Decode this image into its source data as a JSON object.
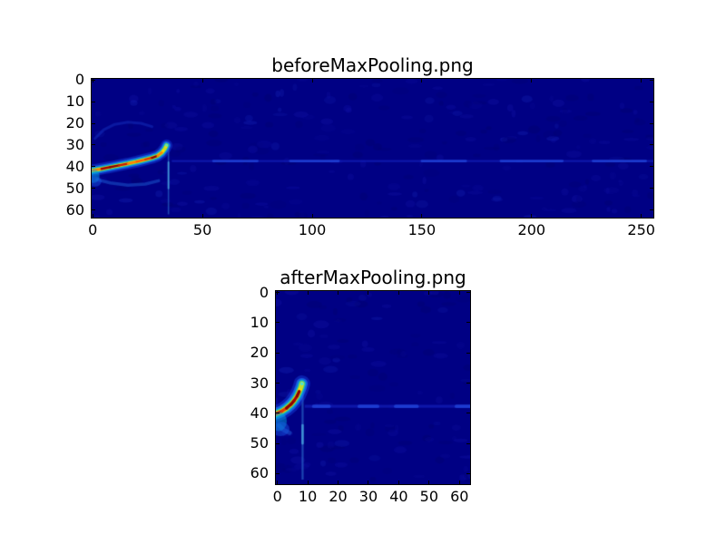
{
  "figure": {
    "background": "#ffffff"
  },
  "chart_data": [
    {
      "id": "before",
      "type": "heatmap",
      "title": "beforeMaxPooling.png",
      "colormap": "jet",
      "x_ticks": [
        0,
        50,
        100,
        150,
        200,
        250
      ],
      "y_ticks": [
        0,
        10,
        20,
        30,
        40,
        50,
        60
      ],
      "x_range": [
        -0.5,
        255.5
      ],
      "y_range": [
        -0.5,
        63.5
      ],
      "y_axis_inverted": true,
      "grid": false,
      "background_color": "#000084",
      "description": "spectrogram-like image, dark navy background with a bright rising chirp at lower-left",
      "features": {
        "chirp_ridge": [
          [
            -0.5,
            41.8
          ],
          [
            4,
            41.0
          ],
          [
            8,
            40.2
          ],
          [
            12,
            39.4
          ],
          [
            16,
            38.6
          ],
          [
            20,
            37.7
          ],
          [
            24,
            36.7
          ],
          [
            27,
            35.9
          ],
          [
            29.5,
            35.0
          ],
          [
            31.5,
            33.5
          ],
          [
            32.8,
            31.8
          ],
          [
            33.6,
            30.2
          ]
        ],
        "chirp_colors": {
          "core": [
            "#8b0000",
            "#c81800",
            "#ff5a00",
            "#a80000",
            "#e03a00",
            "#ff8000"
          ],
          "yellow": "#ffd800",
          "green": "rgba(120,215,70,0.9)",
          "cyan": "rgba(0,185,215,0.85)",
          "blue": "rgba(25,110,235,0.8)",
          "halo": "rgba(20,60,215,0.5)"
        },
        "vertical_streak": {
          "x": 34.5,
          "y_from": 29.5,
          "y_to": 62,
          "bright": [
            38,
            50
          ]
        },
        "horizontal_band": {
          "y": 37.4,
          "x_from": 36,
          "x_to": 255.5
        },
        "band_bright_segments": [
          [
            55,
            75
          ],
          [
            90,
            112
          ],
          [
            150,
            170
          ],
          [
            186,
            214
          ],
          [
            228,
            252
          ]
        ],
        "upper_arc": [
          [
            1,
            27
          ],
          [
            5,
            23
          ],
          [
            10,
            20.5
          ],
          [
            16,
            19.5
          ],
          [
            22,
            20
          ],
          [
            27,
            21.5
          ]
        ],
        "lower_arc": [
          [
            2,
            46
          ],
          [
            8,
            47.5
          ],
          [
            16,
            48.5
          ],
          [
            24,
            48
          ],
          [
            30,
            46.5
          ]
        ]
      }
    },
    {
      "id": "after",
      "type": "heatmap",
      "title": "afterMaxPooling.png",
      "colormap": "jet",
      "x_ticks": [
        0,
        10,
        20,
        30,
        40,
        50,
        60
      ],
      "y_ticks": [
        0,
        10,
        20,
        30,
        40,
        50,
        60
      ],
      "x_range": [
        -0.5,
        63.5
      ],
      "y_range": [
        -0.5,
        63.5
      ],
      "y_axis_inverted": true,
      "grid": false,
      "background_color": "#000084",
      "description": "max-pooled version of the spectrogram, same chirp compressed to the left edge",
      "features": {
        "chirp_ridge": [
          [
            -0.5,
            40.2
          ],
          [
            1.5,
            39.3
          ],
          [
            3,
            38.3
          ],
          [
            4.5,
            37.0
          ],
          [
            5.5,
            35.8
          ],
          [
            6.5,
            34.3
          ],
          [
            7.2,
            32.8
          ],
          [
            7.8,
            31.3
          ],
          [
            8.1,
            30.2
          ]
        ],
        "chirp_colors": {
          "core": [
            "#8b0000",
            "#c81800",
            "#ff5a00",
            "#a80000",
            "#e03a00",
            "#ff8000"
          ],
          "yellow": "#ffd800",
          "green": "rgba(120,215,70,0.9)",
          "cyan": "rgba(0,185,215,0.85)",
          "blue": "rgba(25,110,235,0.8)",
          "halo": "rgba(20,60,215,0.5)"
        },
        "vertical_streak": {
          "x": 8.3,
          "y_from": 30,
          "y_to": 62,
          "bright": [
            44,
            50
          ]
        },
        "horizontal_band": {
          "y": 37.7,
          "x_from": 9,
          "x_to": 63.5
        },
        "band_bright_segments": [
          [
            12,
            17
          ],
          [
            27,
            33
          ],
          [
            39,
            46
          ],
          [
            59,
            63.5
          ]
        ],
        "lower_arc": [
          [
            0.5,
            44
          ],
          [
            2,
            45.5
          ],
          [
            4,
            46.5
          ]
        ]
      }
    }
  ]
}
